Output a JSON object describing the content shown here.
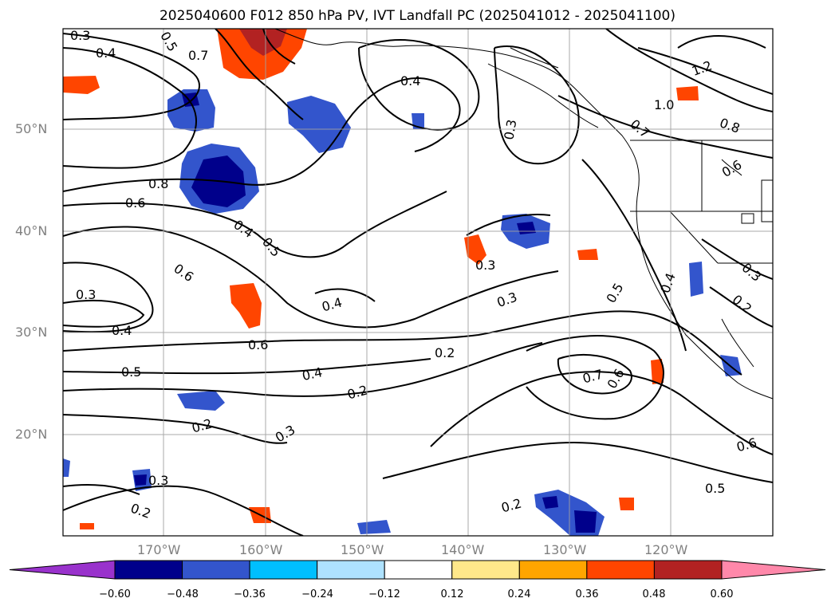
{
  "title": "2025040600 F012 850 hPa PV, IVT Landfall PC (2025041012 - 2025041100)",
  "lat_labels": [
    "50°N",
    "40°N",
    "30°N",
    "20°N"
  ],
  "lon_labels": [
    "170°W",
    "160°W",
    "150°W",
    "140°W",
    "130°W",
    "120°W"
  ],
  "contour_labels": [
    "0.3",
    "0.4",
    "0.5",
    "0.7",
    "0.8",
    "0.6",
    "0.4",
    "0.5",
    "0.3",
    "0.6",
    "0.3",
    "0.4",
    "0.6",
    "0.4",
    "0.5",
    "0.2",
    "0.4",
    "0.2",
    "0.2",
    "0.3",
    "0.3",
    "0.2",
    "0.2",
    "0.3",
    "0.3",
    "0.7",
    "0.6",
    "0.5",
    "0.4",
    "0.3",
    "0.2",
    "0.6",
    "0.5",
    "1.2",
    "1.0",
    "0.8",
    "0.6",
    "0.7",
    "0.4"
  ],
  "colorbar": {
    "ticks": [
      "−0.60",
      "−0.48",
      "−0.36",
      "−0.24",
      "−0.12",
      "0.12",
      "0.24",
      "0.36",
      "0.48",
      "0.60"
    ],
    "colors": [
      "#9932cc",
      "#00008b",
      "#3355cc",
      "#00bfff",
      "#aee2ff",
      "#ffffff",
      "#ffe88a",
      "#ffa500",
      "#ff4500",
      "#b22222",
      "#ff88aa"
    ]
  }
}
